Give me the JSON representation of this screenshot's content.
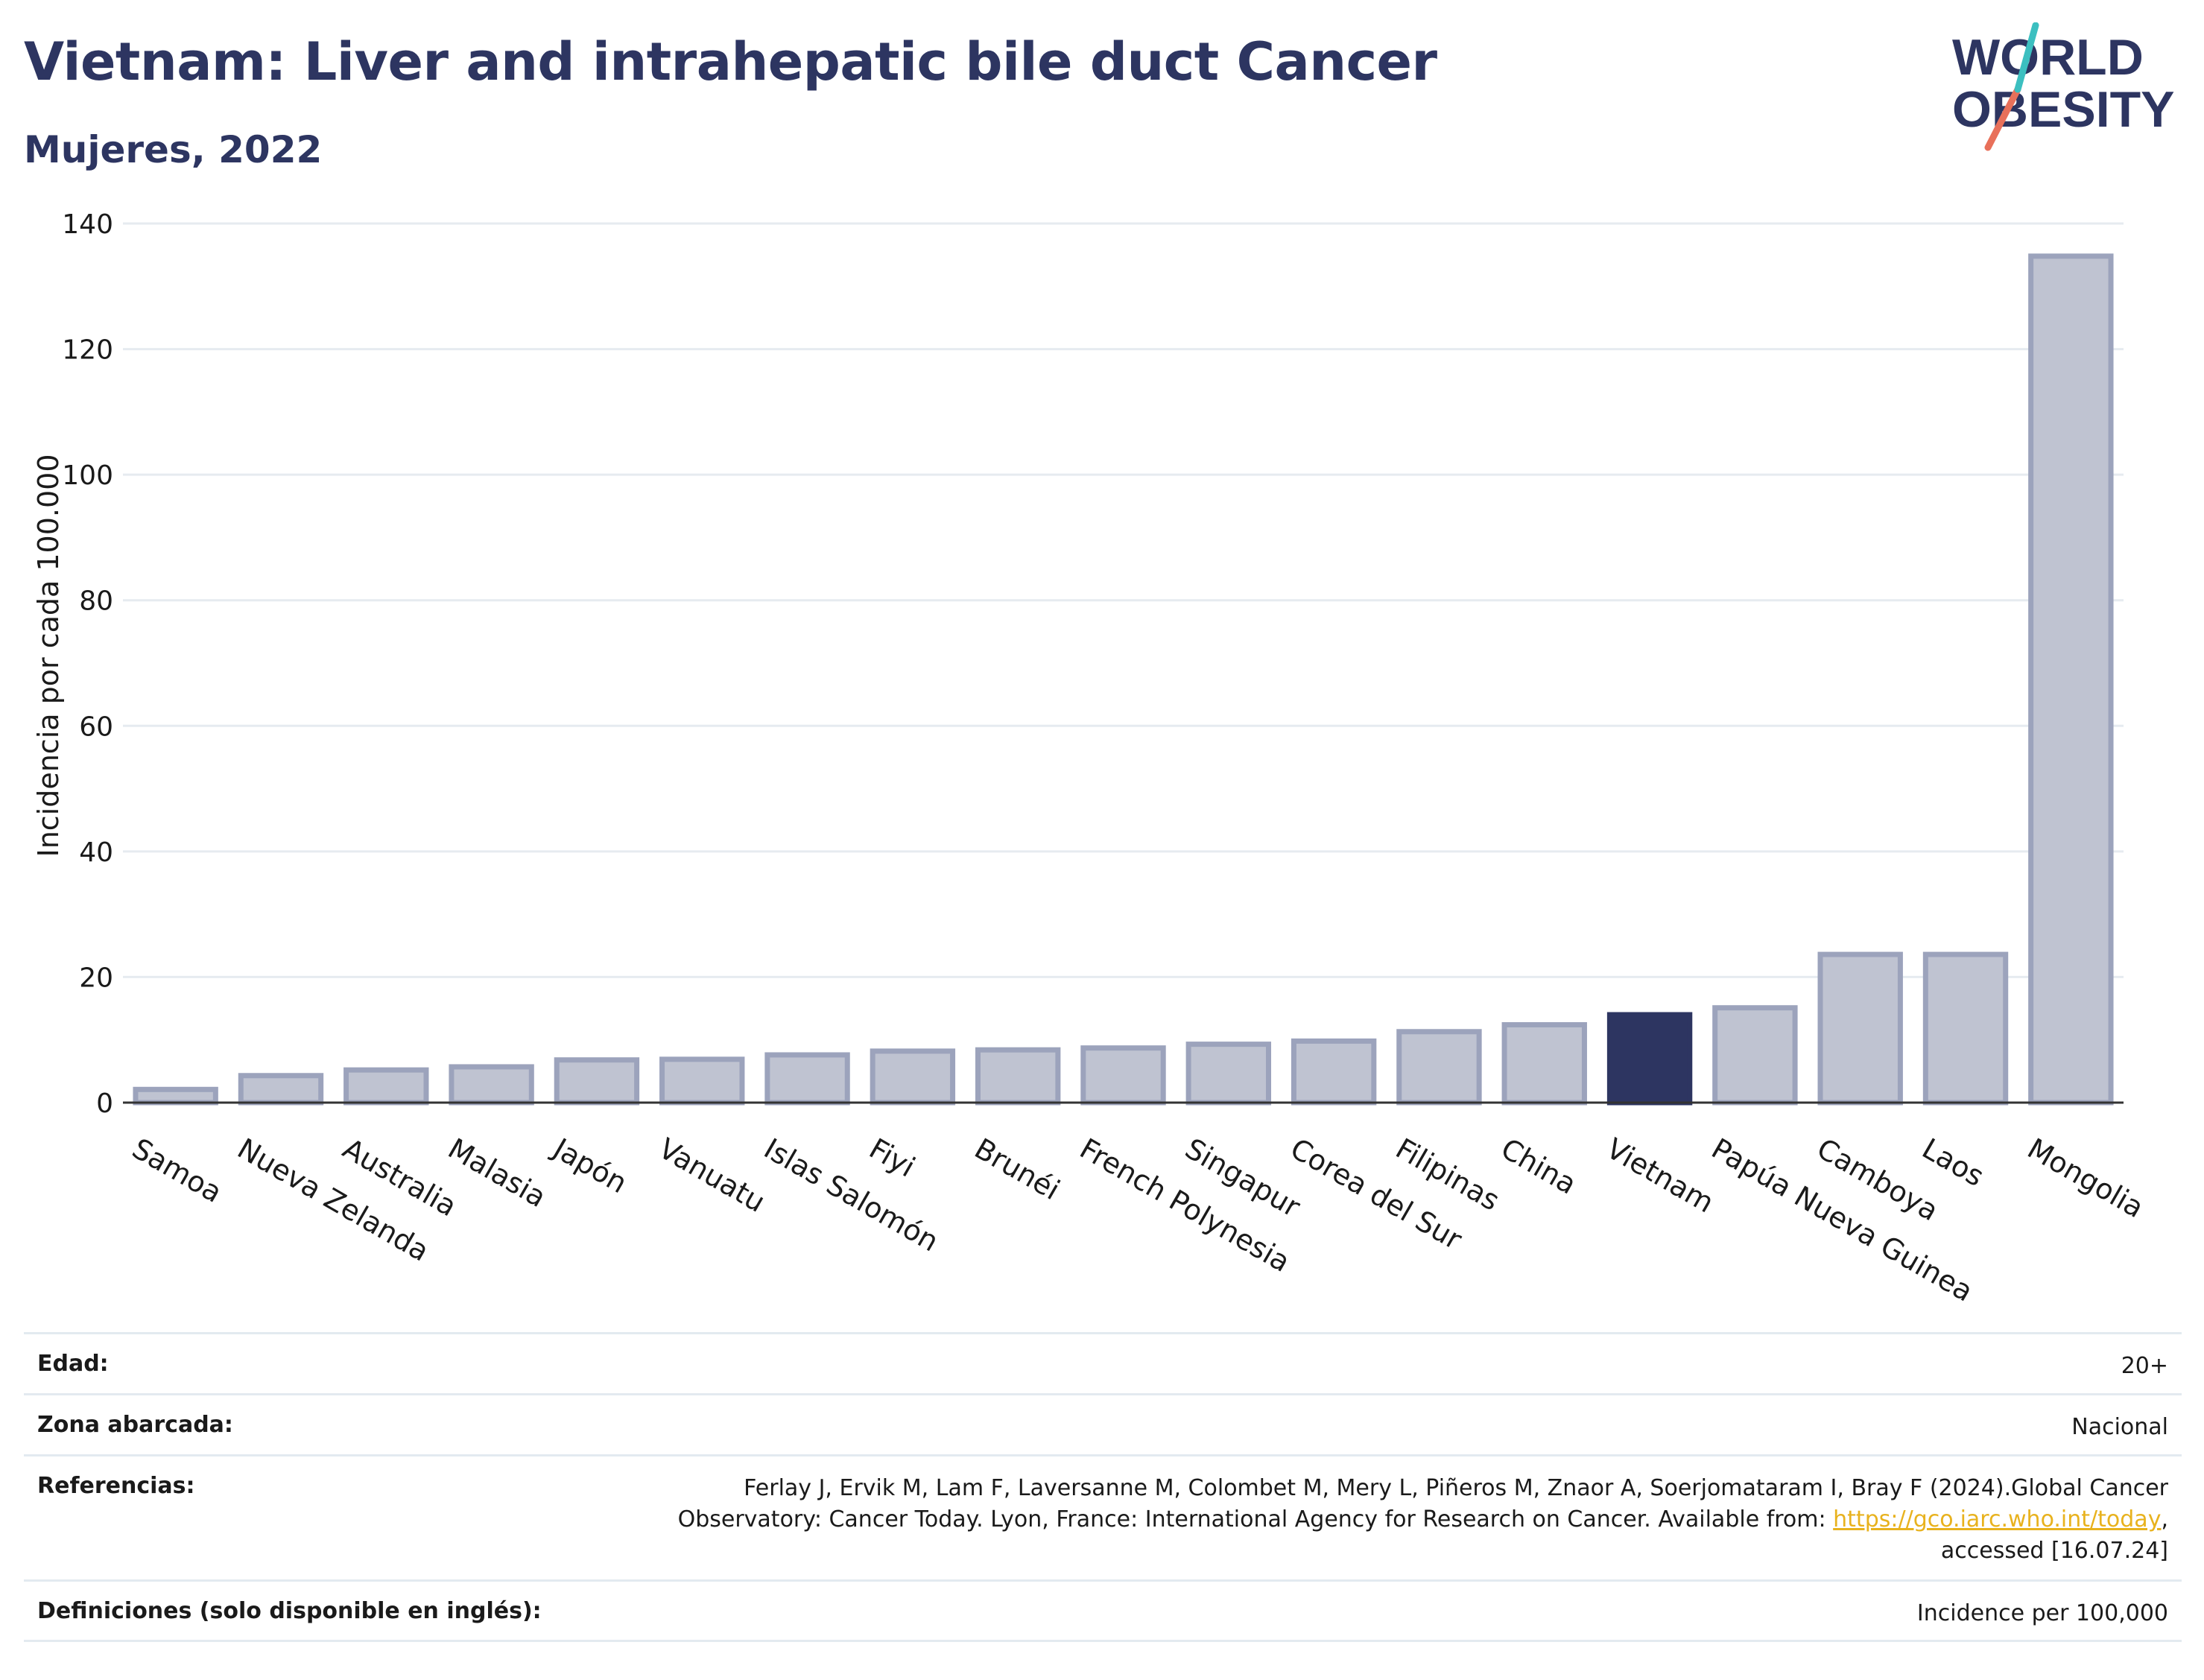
{
  "header": {
    "title": "Vietnam: Liver and intrahepatic bile duct Cancer",
    "subtitle": "Mujeres, 2022"
  },
  "logo": {
    "line1": "WORLD",
    "line2": "OBESITY",
    "text_color": "#2d3561",
    "slash_colors": [
      "#3cbfc0",
      "#e8705a"
    ]
  },
  "colors": {
    "bar": "#bfc3d1",
    "bar_stroke": "#9ca3bc",
    "highlight": "#2d3561",
    "grid": "#e6ebf0",
    "axis": "#333333"
  },
  "chart_data": {
    "type": "bar",
    "title": "Vietnam: Liver and intrahepatic bile duct Cancer",
    "subtitle": "Mujeres, 2022",
    "xlabel": "",
    "ylabel": "Incidencia por cada 100.000",
    "ylim": [
      0,
      140
    ],
    "yticks": [
      0,
      20,
      40,
      60,
      80,
      100,
      120,
      140
    ],
    "grid": true,
    "highlight": "Vietnam",
    "categories": [
      "Samoa",
      "Nueva Zelanda",
      "Australia",
      "Malasia",
      "Japón",
      "Vanuatu",
      "Islas Salomón",
      "Fiyi",
      "Brunéi",
      "French Polynesia",
      "Singapur",
      "Corea del Sur",
      "Filipinas",
      "China",
      "Vietnam",
      "Papúa Nueva Guinea",
      "Camboya",
      "Laos",
      "Mongolia"
    ],
    "values": [
      2.1,
      4.3,
      5.2,
      5.7,
      6.8,
      6.9,
      7.6,
      8.2,
      8.4,
      8.7,
      9.3,
      9.8,
      11.3,
      12.4,
      14.0,
      15.1,
      23.6,
      23.6,
      134.8
    ]
  },
  "meta": {
    "age_label": "Edad:",
    "age_value": "20+",
    "zone_label": "Zona abarcada:",
    "zone_value": "Nacional",
    "ref_label": "Referencias:",
    "ref_text_1": "Ferlay J, Ervik M, Lam F, Laversanne M, Colombet M, Mery L, Piñeros M, Znaor A, Soerjomataram I, Bray F (2024).Global Cancer",
    "ref_text_2": "Observatory: Cancer Today. Lyon, France: International Agency for Research on Cancer. Available from: ",
    "ref_link": "https://gco.iarc.who.int/today",
    "ref_text_3": ",",
    "ref_text_4": "accessed [16.07.24]",
    "def_label": "Definiciones (solo disponible en inglés):",
    "def_value": "Incidence per 100,000"
  }
}
